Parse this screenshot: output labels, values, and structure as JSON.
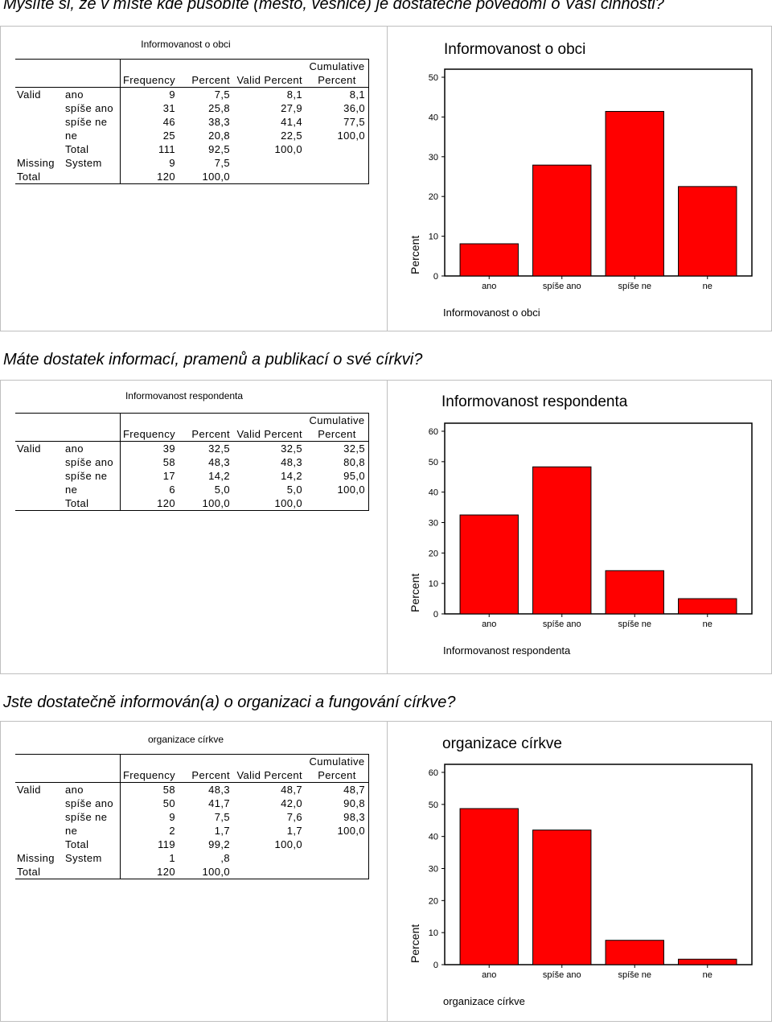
{
  "sections": [
    {
      "question": "Myslíte si, že v místě kde působíte (město, vesnice) je dostatečné povědomí o Vaší činnosti?",
      "table": {
        "title": "Informovanost o obci",
        "headers": {
          "frequency": "Frequency",
          "percent": "Percent",
          "valid_percent": "Valid Percent",
          "cumulative_line1": "Cumulative",
          "cumulative_line2": "Percent"
        },
        "rows": [
          {
            "group": "Valid",
            "label": "ano",
            "frequency": "9",
            "percent": "7,5",
            "valid_percent": "8,1",
            "cumulative": "8,1"
          },
          {
            "group": "",
            "label": "spíše ano",
            "frequency": "31",
            "percent": "25,8",
            "valid_percent": "27,9",
            "cumulative": "36,0"
          },
          {
            "group": "",
            "label": "spíše ne",
            "frequency": "46",
            "percent": "38,3",
            "valid_percent": "41,4",
            "cumulative": "77,5"
          },
          {
            "group": "",
            "label": "ne",
            "frequency": "25",
            "percent": "20,8",
            "valid_percent": "22,5",
            "cumulative": "100,0"
          },
          {
            "group": "",
            "label": "Total",
            "frequency": "111",
            "percent": "92,5",
            "valid_percent": "100,0",
            "cumulative": ""
          },
          {
            "group": "Missing",
            "label": "System",
            "frequency": "9",
            "percent": "7,5",
            "valid_percent": "",
            "cumulative": ""
          },
          {
            "group": "Total",
            "label": "",
            "frequency": "120",
            "percent": "100,0",
            "valid_percent": "",
            "cumulative": ""
          }
        ]
      },
      "chart_data": {
        "type": "bar",
        "title": "Informovanost o obci",
        "xlabel": "Informovanost o obci",
        "ylabel": "Percent",
        "categories": [
          "ano",
          "spíše ano",
          "spíše ne",
          "ne"
        ],
        "values": [
          8.1,
          27.9,
          41.4,
          22.5
        ],
        "ylim": [
          0,
          50
        ],
        "yticks": [
          0,
          10,
          20,
          30,
          40,
          50
        ],
        "bar_color": "#ff0000",
        "grid": false
      }
    },
    {
      "question": "Máte dostatek informací, pramenů a publikací o své církvi?",
      "table": {
        "title": "Informovanost respondenta",
        "headers": {
          "frequency": "Frequency",
          "percent": "Percent",
          "valid_percent": "Valid Percent",
          "cumulative_line1": "Cumulative",
          "cumulative_line2": "Percent"
        },
        "rows": [
          {
            "group": "Valid",
            "label": "ano",
            "frequency": "39",
            "percent": "32,5",
            "valid_percent": "32,5",
            "cumulative": "32,5"
          },
          {
            "group": "",
            "label": "spíše ano",
            "frequency": "58",
            "percent": "48,3",
            "valid_percent": "48,3",
            "cumulative": "80,8"
          },
          {
            "group": "",
            "label": "spíše ne",
            "frequency": "17",
            "percent": "14,2",
            "valid_percent": "14,2",
            "cumulative": "95,0"
          },
          {
            "group": "",
            "label": "ne",
            "frequency": "6",
            "percent": "5,0",
            "valid_percent": "5,0",
            "cumulative": "100,0"
          },
          {
            "group": "",
            "label": "Total",
            "frequency": "120",
            "percent": "100,0",
            "valid_percent": "100,0",
            "cumulative": ""
          }
        ]
      },
      "chart_data": {
        "type": "bar",
        "title": "Informovanost respondenta",
        "xlabel": "Informovanost respondenta",
        "ylabel": "Percent",
        "categories": [
          "ano",
          "spíše ano",
          "spíše ne",
          "ne"
        ],
        "values": [
          32.5,
          48.3,
          14.2,
          5.0
        ],
        "ylim": [
          0,
          60
        ],
        "yticks": [
          0,
          10,
          20,
          30,
          40,
          50,
          60
        ],
        "bar_color": "#ff0000",
        "grid": false
      }
    },
    {
      "question": "Jste dostatečně informován(a) o organizaci a fungování církve?",
      "table": {
        "title": "organizace církve",
        "headers": {
          "frequency": "Frequency",
          "percent": "Percent",
          "valid_percent": "Valid Percent",
          "cumulative_line1": "Cumulative",
          "cumulative_line2": "Percent"
        },
        "rows": [
          {
            "group": "Valid",
            "label": "ano",
            "frequency": "58",
            "percent": "48,3",
            "valid_percent": "48,7",
            "cumulative": "48,7"
          },
          {
            "group": "",
            "label": "spíše ano",
            "frequency": "50",
            "percent": "41,7",
            "valid_percent": "42,0",
            "cumulative": "90,8"
          },
          {
            "group": "",
            "label": "spíše ne",
            "frequency": "9",
            "percent": "7,5",
            "valid_percent": "7,6",
            "cumulative": "98,3"
          },
          {
            "group": "",
            "label": "ne",
            "frequency": "2",
            "percent": "1,7",
            "valid_percent": "1,7",
            "cumulative": "100,0"
          },
          {
            "group": "",
            "label": "Total",
            "frequency": "119",
            "percent": "99,2",
            "valid_percent": "100,0",
            "cumulative": ""
          },
          {
            "group": "Missing",
            "label": "System",
            "frequency": "1",
            "percent": ",8",
            "valid_percent": "",
            "cumulative": ""
          },
          {
            "group": "Total",
            "label": "",
            "frequency": "120",
            "percent": "100,0",
            "valid_percent": "",
            "cumulative": ""
          }
        ]
      },
      "chart_data": {
        "type": "bar",
        "title": "organizace církve",
        "xlabel": "organizace církve",
        "ylabel": "Percent",
        "categories": [
          "ano",
          "spíše ano",
          "spíše ne",
          "ne"
        ],
        "values": [
          48.7,
          42.0,
          7.6,
          1.7
        ],
        "ylim": [
          0,
          60
        ],
        "yticks": [
          0,
          10,
          20,
          30,
          40,
          50,
          60
        ],
        "bar_color": "#ff0000",
        "grid": false
      }
    }
  ]
}
